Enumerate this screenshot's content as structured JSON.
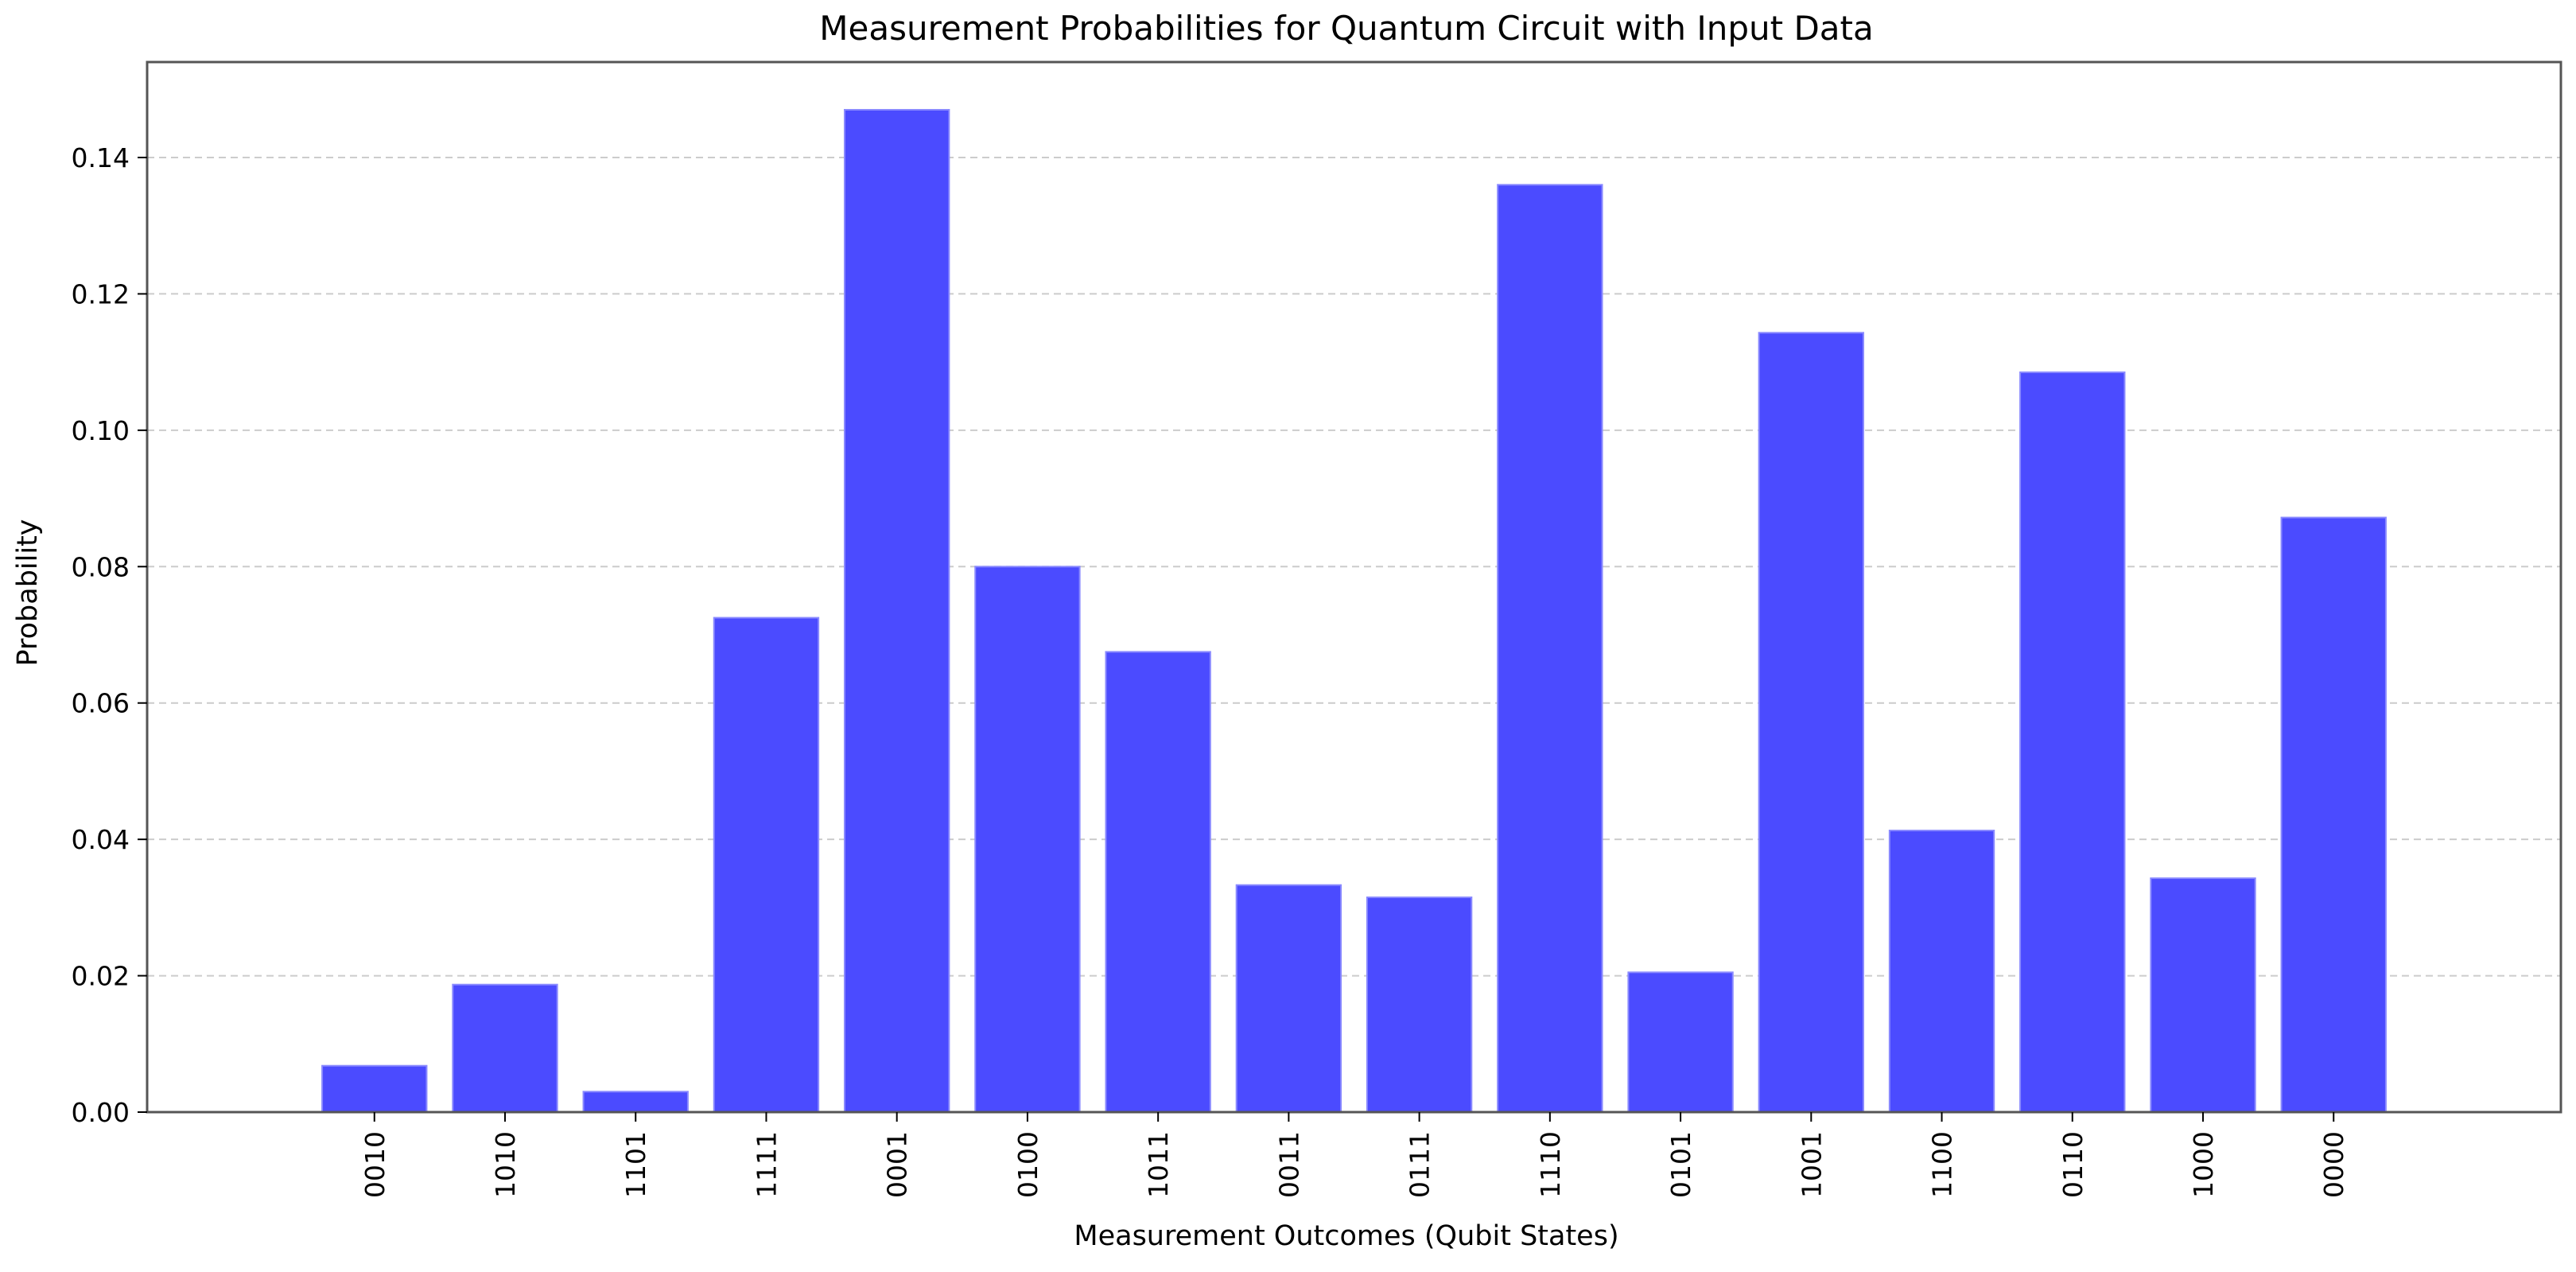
{
  "chart_data": {
    "type": "bar",
    "title": "Measurement Probabilities for Quantum Circuit with Input Data",
    "xlabel": "Measurement Outcomes (Qubit States)",
    "ylabel": "Probability",
    "categories": [
      "0010",
      "1010",
      "1101",
      "1111",
      "0001",
      "0100",
      "1011",
      "0011",
      "0111",
      "1110",
      "0101",
      "1001",
      "1100",
      "0110",
      "1000",
      "0000"
    ],
    "values": [
      0.0068,
      0.0187,
      0.003,
      0.0725,
      0.147,
      0.08,
      0.0675,
      0.0333,
      0.0315,
      0.136,
      0.0205,
      0.1143,
      0.0413,
      0.1085,
      0.0343,
      0.0872
    ],
    "ylim": [
      0,
      0.154
    ],
    "yticks": [
      0.0,
      0.02,
      0.04,
      0.06,
      0.08,
      0.1,
      0.12,
      0.14
    ],
    "ytick_labels": [
      "0.00",
      "0.02",
      "0.04",
      "0.06",
      "0.08",
      "0.10",
      "0.12",
      "0.14"
    ],
    "grid": "y-dashed",
    "bar_color": "#4b4bff",
    "bar_edge_color": "#8a8aff",
    "grid_color": "#cccccc",
    "axis_color": "#555555"
  }
}
